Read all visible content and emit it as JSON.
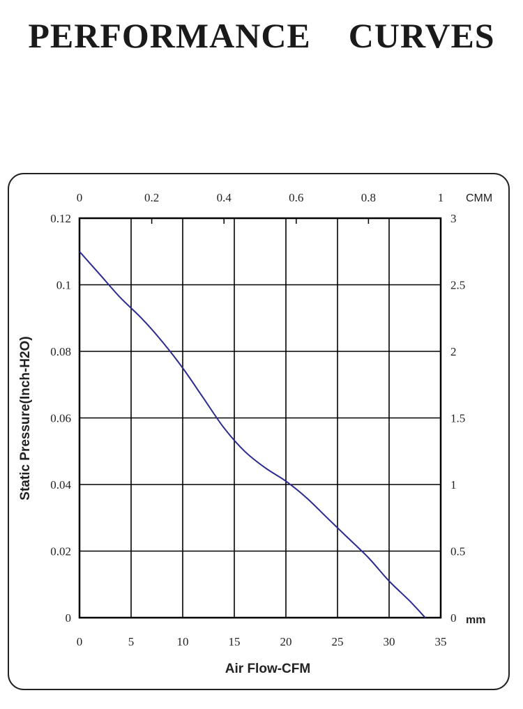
{
  "page": {
    "title": "PERFORMANCE    CURVES"
  },
  "chart_data": {
    "type": "line",
    "xlabel": "Air Flow-CFM",
    "ylabel": "Static Pressure(Inch-H2O)",
    "xlim": [
      0,
      35
    ],
    "ylim": [
      0,
      0.12
    ],
    "x_ticks": [
      "0",
      "5",
      "10",
      "15",
      "20",
      "25",
      "30",
      "35"
    ],
    "y_ticks": [
      "0",
      "0.02",
      "0.04",
      "0.06",
      "0.08",
      "0.1",
      "0.12"
    ],
    "secondary_x": {
      "unit": "CMM",
      "range": [
        0,
        1
      ],
      "ticks": [
        "0",
        "0.2",
        "0.4",
        "0.6",
        "0.8",
        "1"
      ]
    },
    "secondary_y": {
      "unit": "mm",
      "range": [
        0,
        3
      ],
      "ticks": [
        "0",
        "0.5",
        "1",
        "1.5",
        "2",
        "2.5",
        "3"
      ]
    },
    "grid": true,
    "line_color": "#2b2b8f",
    "series": [
      {
        "x": [
          0,
          2,
          4,
          6,
          8,
          10,
          12,
          14,
          16,
          18,
          20,
          22,
          24,
          26,
          28,
          30,
          32,
          33.5
        ],
        "y": [
          0.11,
          0.103,
          0.096,
          0.09,
          0.083,
          0.075,
          0.066,
          0.057,
          0.05,
          0.045,
          0.041,
          0.036,
          0.03,
          0.024,
          0.018,
          0.011,
          0.005,
          0.0
        ]
      }
    ]
  }
}
